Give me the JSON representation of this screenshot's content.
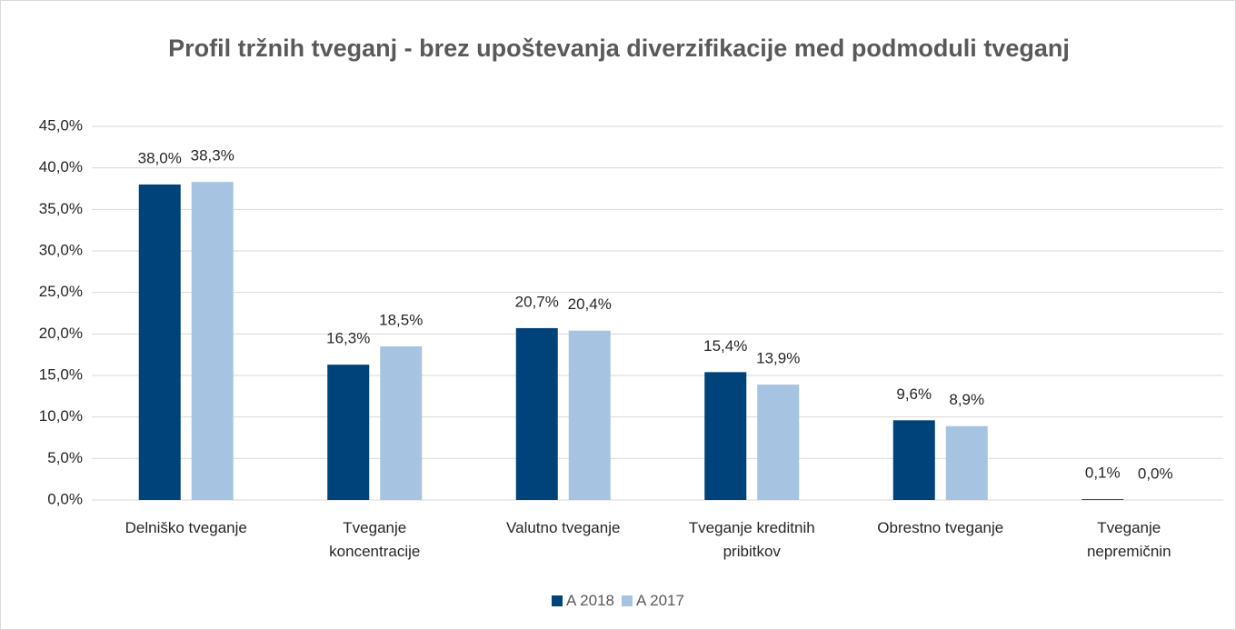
{
  "chart_data": {
    "type": "bar",
    "title": "Profil tržnih tveganj - brez upoštevanja diverzifikacije med podmoduli tveganj",
    "categories": [
      "Delniško tveganje",
      "Tveganje koncentracije",
      "Valutno tveganje",
      "Tveganje kreditnih pribitkov",
      "Obrestno tveganje",
      "Tveganje nepremičnin"
    ],
    "series": [
      {
        "name": "A 2018",
        "color": "#00427a",
        "values": [
          38.0,
          16.3,
          20.7,
          15.4,
          9.6,
          0.1
        ],
        "value_labels": [
          "38,0%",
          "16,3%",
          "20,7%",
          "15,4%",
          "9,6%",
          "0,1%"
        ]
      },
      {
        "name": "A 2017",
        "color": "#a6c4e2",
        "values": [
          38.3,
          18.5,
          20.4,
          13.9,
          8.9,
          0.0
        ],
        "value_labels": [
          "38,3%",
          "18,5%",
          "20,4%",
          "13,9%",
          "8,9%",
          "0,0%"
        ]
      }
    ],
    "ylim": [
      0,
      45
    ],
    "yticks": [
      {
        "value": 0,
        "label": "0,0%"
      },
      {
        "value": 5,
        "label": "5,0%"
      },
      {
        "value": 10,
        "label": "10,0%"
      },
      {
        "value": 15,
        "label": "15,0%"
      },
      {
        "value": 20,
        "label": "20,0%"
      },
      {
        "value": 25,
        "label": "25,0%"
      },
      {
        "value": 30,
        "label": "30,0%"
      },
      {
        "value": 35,
        "label": "35,0%"
      },
      {
        "value": 40,
        "label": "40,0%"
      },
      {
        "value": 45,
        "label": "45,0%"
      }
    ],
    "grid": true,
    "legend": "bottom"
  }
}
